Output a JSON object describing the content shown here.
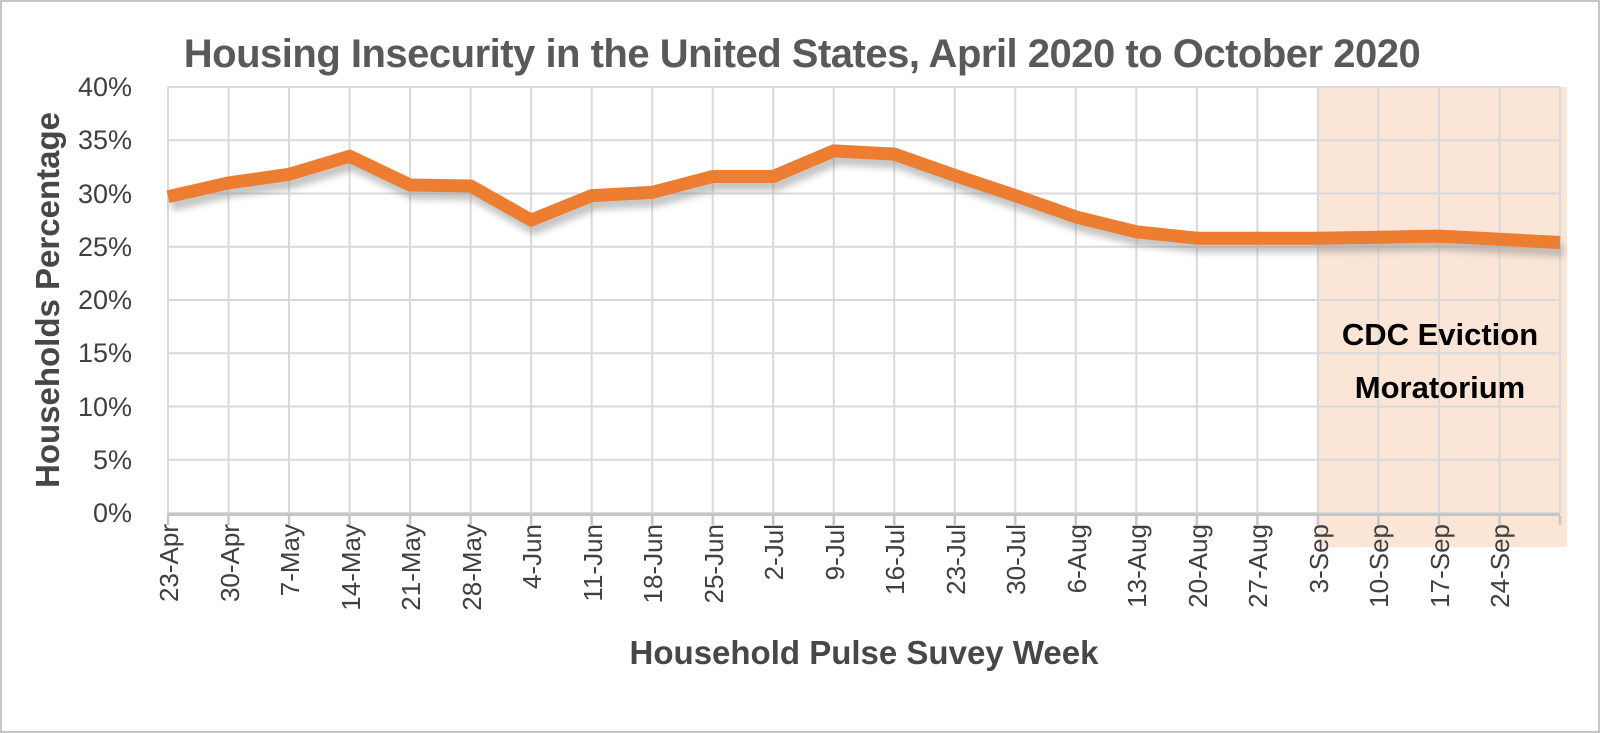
{
  "chart_data": {
    "type": "line",
    "title": "Housing Insecurity in the United States, April 2020 to October 2020",
    "xlabel": "Household Pulse Suvey Week",
    "ylabel": "Households Percentage",
    "categories": [
      "23-Apr",
      "30-Apr",
      "7-May",
      "14-May",
      "21-May",
      "28-May",
      "4-Jun",
      "11-Jun",
      "18-Jun",
      "25-Jun",
      "2-Jul",
      "9-Jul",
      "16-Jul",
      "23-Jul",
      "30-Jul",
      "6-Aug",
      "13-Aug",
      "20-Aug",
      "27-Aug",
      "3-Sep",
      "10-Sep",
      "17-Sep",
      "24-Sep",
      ""
    ],
    "series": [
      {
        "name": "Households Percentage",
        "color": "#ED7D31",
        "values": [
          29.7,
          31.0,
          31.8,
          33.5,
          30.8,
          30.7,
          27.5,
          29.8,
          30.1,
          31.6,
          31.6,
          34.0,
          33.7,
          31.7,
          29.8,
          27.8,
          26.4,
          25.8,
          25.8,
          25.8,
          25.9,
          26.0,
          25.7,
          25.4
        ]
      }
    ],
    "ylim": [
      0,
      40
    ],
    "ytick_labels": [
      "0%",
      "5%",
      "10%",
      "15%",
      "20%",
      "25%",
      "30%",
      "35%",
      "40%"
    ],
    "grid": true,
    "legend": "none",
    "annotation_region": {
      "label_line1": "CDC Eviction",
      "label_line2": "Moratorium",
      "start_category": "3-Sep",
      "fill": "#FBE5D6"
    },
    "colors": {
      "line": "#ED7D31",
      "region_fill": "#FBE5D6",
      "gridline": "#D9D9D9",
      "axis_line": "#C6C6C6",
      "tick_text": "#404040",
      "title_text": "#595959",
      "annotation_text": "#000000"
    }
  }
}
